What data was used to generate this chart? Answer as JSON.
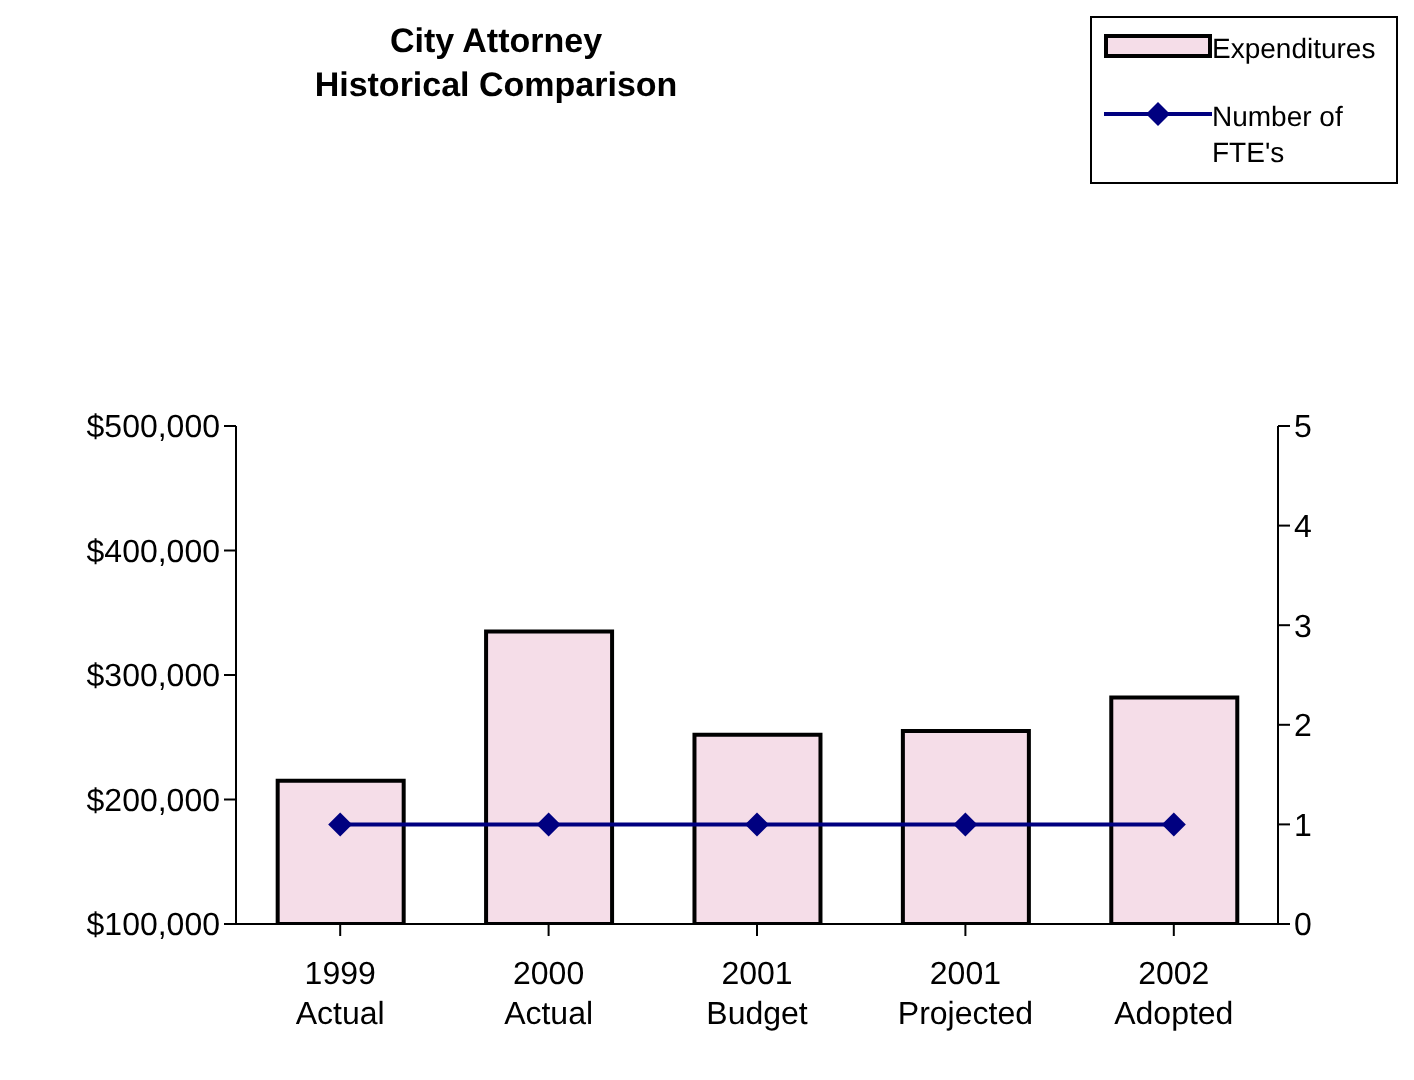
{
  "chart_data": {
    "type": "bar",
    "title": "City Attorney\nHistorical Comparison",
    "categories": [
      "1999\nActual",
      "2000\nActual",
      "2001\nBudget",
      "2001\nProjected",
      "2002\nAdopted"
    ],
    "series": [
      {
        "name": "Expenditures",
        "color": "#f5dde8",
        "values": [
          215000,
          335000,
          252000,
          255000,
          282000
        ]
      },
      {
        "name": "Number of FTE's",
        "type": "line",
        "axis": "y2",
        "color": "#000080",
        "marker": "diamond",
        "values": [
          1,
          1,
          1,
          1,
          1
        ]
      }
    ],
    "ylim": [
      100000,
      500000
    ],
    "yticks": [
      {
        "value": 100000,
        "label": "$100,000"
      },
      {
        "value": 200000,
        "label": "$200,000"
      },
      {
        "value": 300000,
        "label": "$300,000"
      },
      {
        "value": 400000,
        "label": "$400,000"
      },
      {
        "value": 500000,
        "label": "$500,000"
      }
    ],
    "y2lim": [
      0,
      5
    ],
    "y2ticks": [
      0,
      1,
      2,
      3,
      4,
      5
    ],
    "grid": false,
    "legend": "top right"
  }
}
